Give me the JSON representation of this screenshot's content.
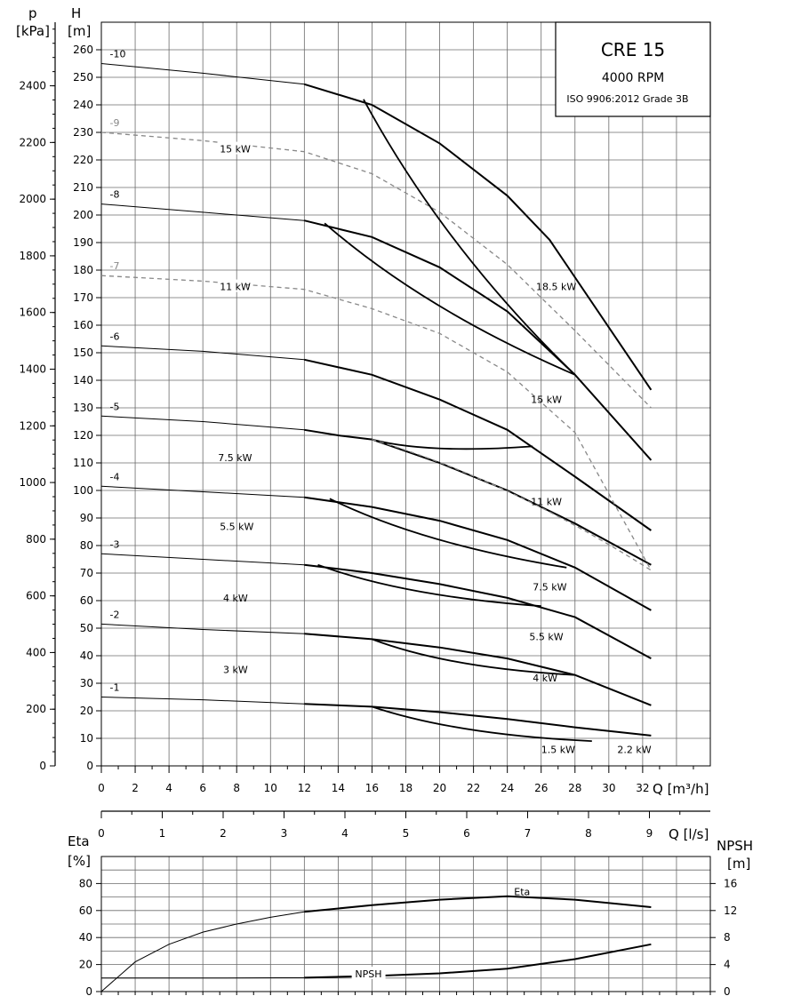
{
  "title_box": {
    "model": "CRE 15",
    "speed": "4000 RPM",
    "standard": "ISO 9906:2012 Grade 3B"
  },
  "chart_data": [
    {
      "type": "line",
      "name": "head",
      "axes": {
        "x": {
          "label": "Q [m³/h]",
          "min": 0,
          "max": 36,
          "ticks": [
            "0",
            "2",
            "4",
            "6",
            "8",
            "10",
            "12",
            "14",
            "16",
            "18",
            "20",
            "22",
            "24",
            "26",
            "28",
            "30",
            "32"
          ]
        },
        "x2": {
          "label": "Q [l/s]",
          "min": 0,
          "max": 10,
          "ticks": [
            "0",
            "1",
            "2",
            "3",
            "4",
            "5",
            "6",
            "7",
            "8",
            "9"
          ]
        },
        "y": {
          "label_top": "H",
          "label_unit": "[m]",
          "min": 0,
          "max": 270,
          "ticks": [
            "0",
            "10",
            "20",
            "30",
            "40",
            "50",
            "60",
            "70",
            "80",
            "90",
            "100",
            "110",
            "120",
            "130",
            "140",
            "150",
            "160",
            "170",
            "180",
            "190",
            "200",
            "210",
            "220",
            "230",
            "240",
            "250",
            "260"
          ]
        },
        "y2": {
          "label_top": "p",
          "label_unit": "[kPa]",
          "ticks": [
            "0",
            "200",
            "400",
            "600",
            "800",
            "1000",
            "1200",
            "1400",
            "1600",
            "1800",
            "2000",
            "2200",
            "2400"
          ],
          "values": [
            0,
            200,
            400,
            600,
            800,
            1000,
            1200,
            1400,
            1600,
            1800,
            2000,
            2200,
            2400
          ],
          "kpa_per_m": 9.72
        }
      },
      "series": [
        {
          "name": "-1",
          "points": [
            [
              0,
              25
            ],
            [
              6,
              24
            ],
            [
              12,
              22.5
            ],
            [
              16,
              21.5
            ],
            [
              20,
              19.5
            ],
            [
              24,
              17
            ],
            [
              28,
              14
            ],
            [
              32.5,
              11
            ]
          ]
        },
        {
          "name": "-2",
          "points": [
            [
              0,
              51.5
            ],
            [
              6,
              49.5
            ],
            [
              12,
              48
            ],
            [
              16,
              46
            ],
            [
              20,
              43
            ],
            [
              24,
              39
            ],
            [
              28,
              33
            ],
            [
              32.5,
              22
            ]
          ]
        },
        {
          "name": "-3",
          "points": [
            [
              0,
              77
            ],
            [
              6,
              75
            ],
            [
              12,
              73
            ],
            [
              16,
              70
            ],
            [
              20,
              66
            ],
            [
              24,
              61
            ],
            [
              28,
              54
            ],
            [
              32.5,
              39
            ]
          ]
        },
        {
          "name": "-4",
          "points": [
            [
              0,
              101.5
            ],
            [
              6,
              99.5
            ],
            [
              12,
              97.5
            ],
            [
              16,
              94
            ],
            [
              20,
              89
            ],
            [
              24,
              82
            ],
            [
              28,
              72
            ],
            [
              32.5,
              56.5
            ]
          ]
        },
        {
          "name": "-5",
          "points": [
            [
              0,
              127
            ],
            [
              6,
              125
            ],
            [
              12,
              122
            ],
            [
              14,
              120
            ],
            [
              16,
              118.5
            ],
            [
              20,
              110
            ],
            [
              24,
              100
            ],
            [
              28,
              88
            ],
            [
              32.5,
              73
            ]
          ]
        },
        {
          "name": "-6",
          "points": [
            [
              0,
              152.5
            ],
            [
              6,
              150.5
            ],
            [
              12,
              147.5
            ],
            [
              16,
              142
            ],
            [
              20,
              133
            ],
            [
              24,
              122
            ],
            [
              28,
              105
            ],
            [
              32.5,
              85.5
            ]
          ]
        },
        {
          "name": "-7",
          "points": [
            [
              0,
              178
            ],
            [
              6,
              176
            ],
            [
              12,
              173
            ],
            [
              16,
              166
            ],
            [
              20,
              157
            ],
            [
              24,
              143
            ],
            [
              28,
              121
            ],
            [
              32.5,
              71
            ]
          ]
        },
        {
          "name": "-8",
          "points": [
            [
              0,
              204
            ],
            [
              6,
              201
            ],
            [
              12,
              198
            ],
            [
              16,
              192
            ],
            [
              20,
              181
            ],
            [
              24,
              165
            ],
            [
              28,
              142
            ],
            [
              32.5,
              111
            ]
          ]
        },
        {
          "name": "-9",
          "points": [
            [
              0,
              230
            ],
            [
              6,
              227
            ],
            [
              12,
              223
            ],
            [
              16,
              215
            ],
            [
              20,
              201
            ],
            [
              24,
              182
            ],
            [
              28,
              158
            ],
            [
              32.5,
              130
            ]
          ]
        },
        {
          "name": "-10",
          "points": [
            [
              0,
              255
            ],
            [
              6,
              251.5
            ],
            [
              12,
              247.5
            ],
            [
              16,
              240
            ],
            [
              20,
              226
            ],
            [
              24,
              207
            ],
            [
              26.5,
              191
            ],
            [
              32.5,
              136.5
            ]
          ]
        }
      ],
      "power_labels": [
        "1.5 kW",
        "2.2 kW",
        "3 kW",
        "4 kW",
        "5.5 kW",
        "7.5 kW",
        "11 kW",
        "15 kW",
        "18.5 kW"
      ]
    },
    {
      "type": "line",
      "name": "efficiency",
      "axes": {
        "y": {
          "label_top": "Eta",
          "label_unit": "[%]",
          "min": 0,
          "max": 90,
          "ticks": [
            "0",
            "20",
            "40",
            "60",
            "80"
          ]
        },
        "y2": {
          "label_top": "NPSH",
          "label_unit": "[m]",
          "ticks": [
            "0",
            "4",
            "8",
            "12",
            "16"
          ]
        }
      },
      "series": [
        {
          "name": "Eta",
          "points": [
            [
              0,
              0
            ],
            [
              2,
              22
            ],
            [
              4,
              35
            ],
            [
              6,
              44
            ],
            [
              8,
              50
            ],
            [
              10,
              55
            ],
            [
              12,
              59
            ],
            [
              16,
              64
            ],
            [
              20,
              68
            ],
            [
              24,
              70.5
            ],
            [
              28,
              68
            ],
            [
              32.5,
              62.5
            ]
          ]
        },
        {
          "name": "NPSH",
          "points": [
            [
              0,
              2.0
            ],
            [
              6,
              2.0
            ],
            [
              12,
              2.05
            ],
            [
              16,
              2.3
            ],
            [
              20,
              2.7
            ],
            [
              24,
              3.4
            ],
            [
              28,
              4.8
            ],
            [
              32.5,
              7.0
            ]
          ]
        }
      ]
    }
  ]
}
